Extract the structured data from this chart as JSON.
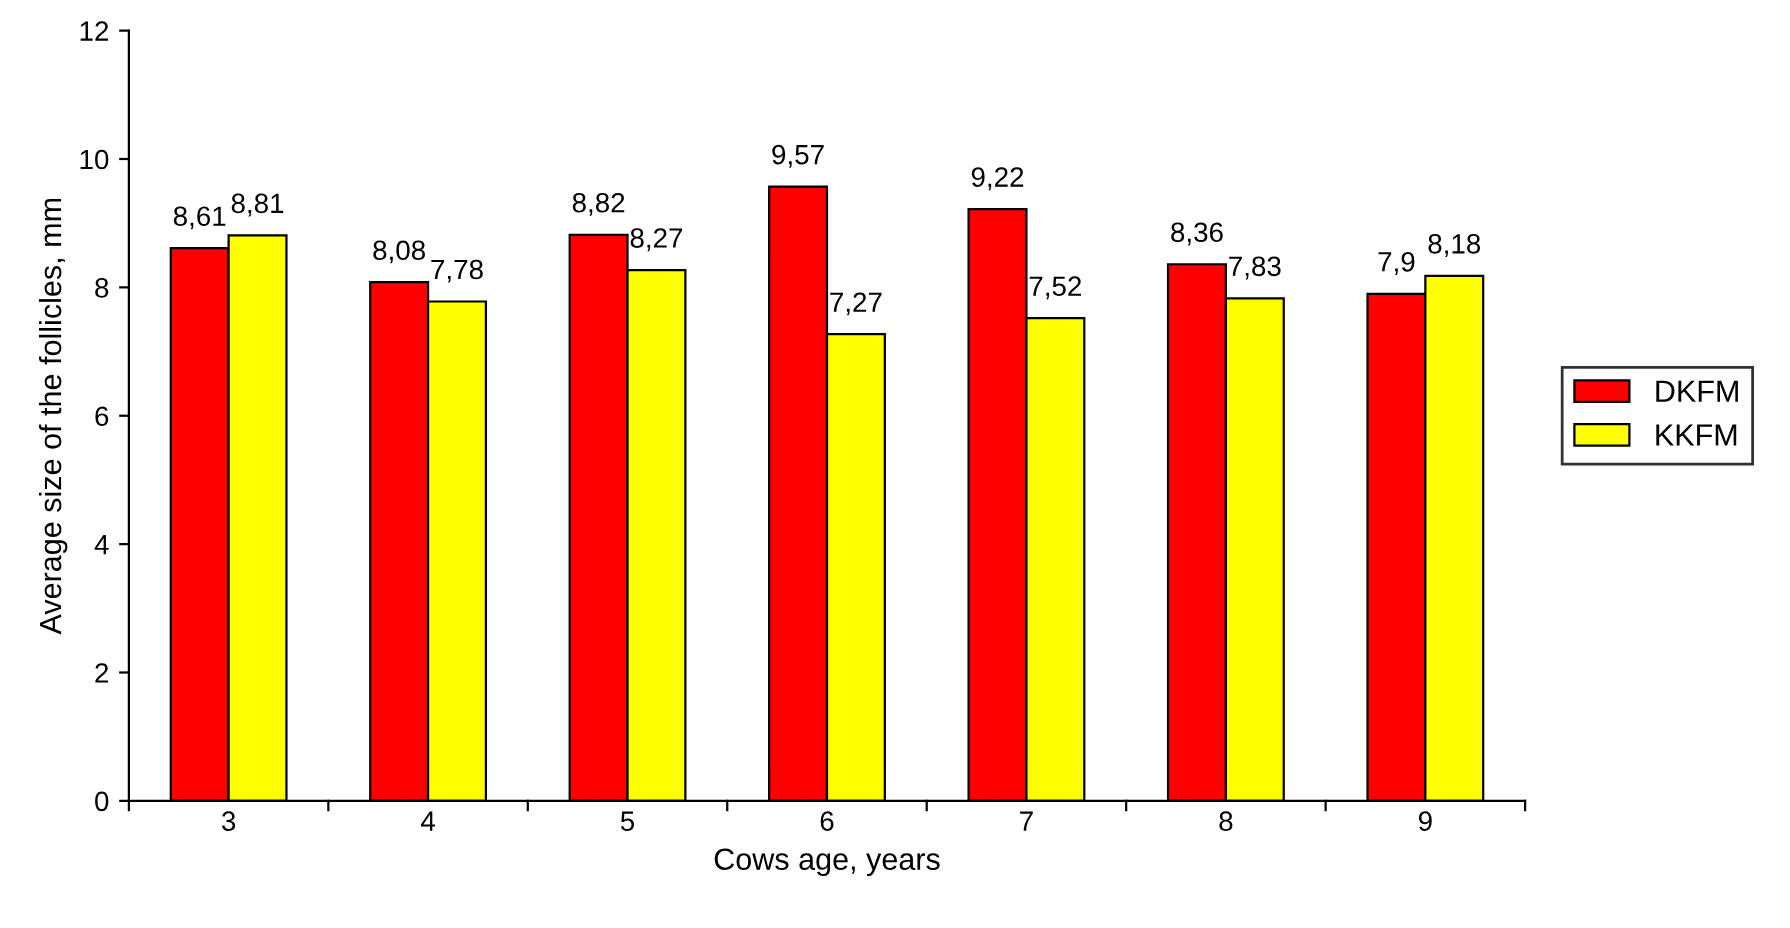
{
  "chart_data": {
    "type": "bar",
    "xlabel": "Cows age, years",
    "ylabel": "Average size of the follicles, mm",
    "categories": [
      "3",
      "4",
      "5",
      "6",
      "7",
      "8",
      "9"
    ],
    "series": [
      {
        "name": "DKFM",
        "color": "#ff0000",
        "values": [
          8.61,
          8.08,
          8.82,
          9.57,
          9.22,
          8.36,
          7.9
        ],
        "value_labels": [
          "8,61",
          "8,08",
          "8,82",
          "9,57",
          "9,22",
          "8,36",
          "7,9"
        ]
      },
      {
        "name": "KKFM",
        "color": "#ffff00",
        "values": [
          8.81,
          7.78,
          8.27,
          7.27,
          7.52,
          7.83,
          8.18
        ],
        "value_labels": [
          "8,81",
          "7,78",
          "8,27",
          "7,27",
          "7,52",
          "7,83",
          "8,18"
        ]
      }
    ],
    "ylim": [
      0,
      12
    ],
    "yticks": [
      0,
      2,
      4,
      6,
      8,
      10,
      12
    ],
    "grid": false,
    "legend": "right"
  }
}
